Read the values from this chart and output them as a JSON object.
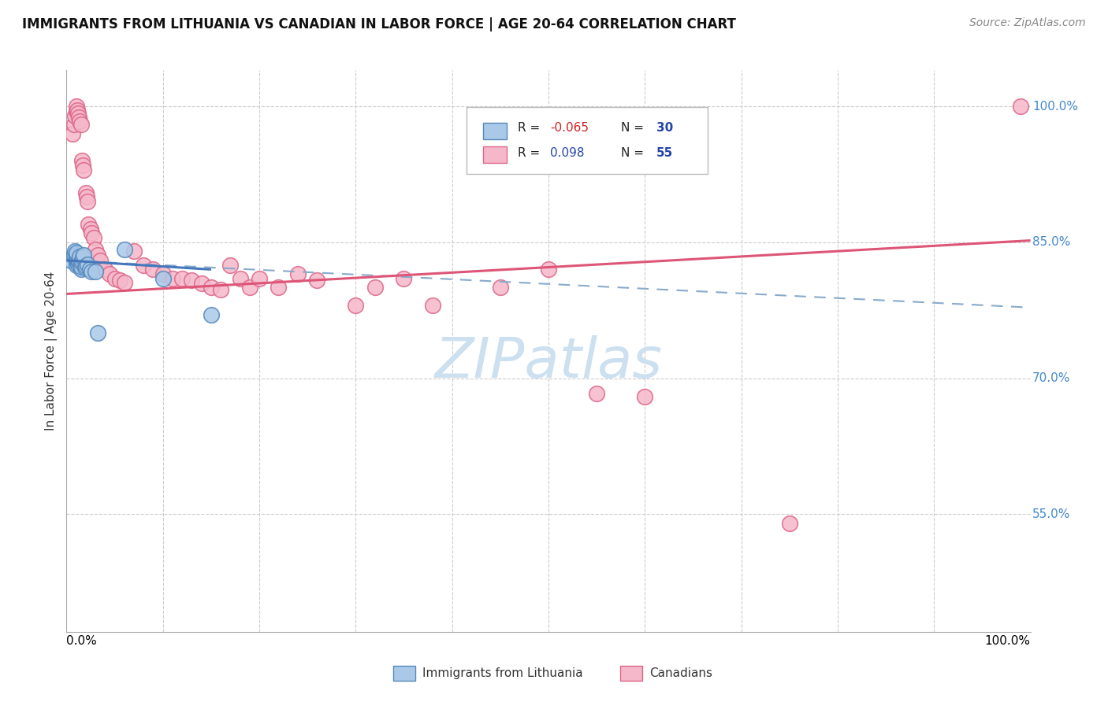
{
  "title": "IMMIGRANTS FROM LITHUANIA VS CANADIAN IN LABOR FORCE | AGE 20-64 CORRELATION CHART",
  "source": "Source: ZipAtlas.com",
  "ylabel": "In Labor Force | Age 20-64",
  "right_ytick_labels": [
    "55.0%",
    "70.0%",
    "85.0%",
    "100.0%"
  ],
  "right_ytick_values": [
    0.55,
    0.7,
    0.85,
    1.0
  ],
  "legend_r_blue": "-0.065",
  "legend_n_blue": "30",
  "legend_r_pink": "0.098",
  "legend_n_pink": "55",
  "blue_color": "#aac9e8",
  "blue_color_edge": "#5588bb",
  "pink_color": "#f5b8cb",
  "pink_color_edge": "#dd6688",
  "trend_blue_solid": "#4477bb",
  "trend_blue_dashed": "#88aacc",
  "trend_pink_solid": "#dd5577",
  "background_color": "#ffffff",
  "grid_color": "#cccccc",
  "watermark_text": "ZIPatlas",
  "watermark_color": "#cce0f0",
  "xlim": [
    0.0,
    1.0
  ],
  "ylim": [
    0.42,
    1.04
  ],
  "blue_x": [
    0.005,
    0.007,
    0.008,
    0.009,
    0.01,
    0.01,
    0.01,
    0.01,
    0.01,
    0.01,
    0.012,
    0.013,
    0.013,
    0.014,
    0.015,
    0.015,
    0.015,
    0.016,
    0.017,
    0.018,
    0.019,
    0.02,
    0.022,
    0.024,
    0.026,
    0.03,
    0.032,
    0.06,
    0.1,
    0.15
  ],
  "blue_y": [
    0.83,
    0.835,
    0.837,
    0.84,
    0.825,
    0.83,
    0.832,
    0.833,
    0.836,
    0.839,
    0.826,
    0.828,
    0.831,
    0.834,
    0.82,
    0.823,
    0.828,
    0.83,
    0.833,
    0.836,
    0.822,
    0.824,
    0.826,
    0.82,
    0.818,
    0.818,
    0.75,
    0.842,
    0.81,
    0.77
  ],
  "pink_x": [
    0.006,
    0.008,
    0.009,
    0.01,
    0.01,
    0.011,
    0.012,
    0.013,
    0.014,
    0.015,
    0.016,
    0.017,
    0.018,
    0.02,
    0.021,
    0.022,
    0.023,
    0.025,
    0.026,
    0.028,
    0.03,
    0.032,
    0.035,
    0.04,
    0.045,
    0.05,
    0.055,
    0.06,
    0.07,
    0.08,
    0.09,
    0.1,
    0.11,
    0.12,
    0.13,
    0.14,
    0.15,
    0.16,
    0.17,
    0.18,
    0.19,
    0.2,
    0.22,
    0.24,
    0.26,
    0.3,
    0.32,
    0.35,
    0.38,
    0.45,
    0.5,
    0.55,
    0.6,
    0.75,
    0.99
  ],
  "pink_y": [
    0.97,
    0.98,
    0.99,
    0.995,
    1.0,
    0.996,
    0.992,
    0.988,
    0.984,
    0.98,
    0.94,
    0.935,
    0.93,
    0.905,
    0.9,
    0.895,
    0.87,
    0.865,
    0.86,
    0.855,
    0.842,
    0.836,
    0.83,
    0.82,
    0.815,
    0.81,
    0.808,
    0.806,
    0.84,
    0.825,
    0.82,
    0.815,
    0.81,
    0.81,
    0.808,
    0.805,
    0.8,
    0.798,
    0.825,
    0.81,
    0.8,
    0.81,
    0.8,
    0.815,
    0.808,
    0.78,
    0.8,
    0.81,
    0.78,
    0.8,
    0.82,
    0.683,
    0.68,
    0.54,
    1.0
  ],
  "trend_blue_x0": 0.0,
  "trend_blue_y0": 0.83,
  "trend_blue_x1": 0.15,
  "trend_blue_y1": 0.82,
  "trend_blue_dash_x0": 0.0,
  "trend_blue_dash_y0": 0.83,
  "trend_blue_dash_x1": 1.0,
  "trend_blue_dash_y1": 0.778,
  "trend_pink_x0": 0.0,
  "trend_pink_y0": 0.793,
  "trend_pink_x1": 1.0,
  "trend_pink_y1": 0.852
}
